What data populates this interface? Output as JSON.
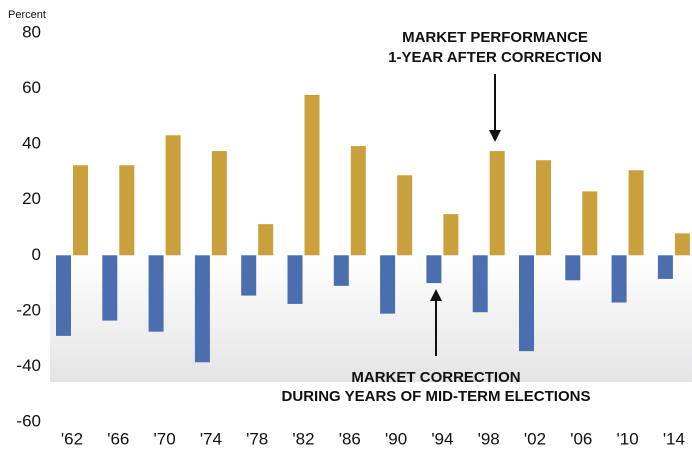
{
  "chart_data": {
    "type": "bar",
    "y_label": "Percent",
    "categories": [
      "'62",
      "'66",
      "'70",
      "'74",
      "'78",
      "'82",
      "'86",
      "'90",
      "'94",
      "'98",
      "'02",
      "'06",
      "'10",
      "'14"
    ],
    "series": [
      {
        "color": "#4a6eae",
        "values": [
          -29,
          -23.5,
          -27.5,
          -38.5,
          -14.5,
          -17.5,
          -11,
          -21,
          -10,
          -20.5,
          -34.5,
          -9,
          -17,
          -8.5
        ]
      },
      {
        "color": "#c9a03b",
        "values": [
          32.4,
          32.4,
          43.2,
          37.5,
          11.2,
          57.7,
          39.3,
          28.8,
          14.8,
          37.5,
          34.2,
          23,
          30.6,
          7.9
        ]
      }
    ],
    "annotations": [
      {
        "lines": [
          "MARKET PERFORMANCE",
          "1-YEAR AFTER CORRECTION"
        ]
      },
      {
        "lines": [
          "MARKET CORRECTION",
          "DURING YEARS OF MID-TERM ELECTIONS"
        ]
      }
    ],
    "ylim": [
      -60,
      80
    ],
    "yticks": [
      -60,
      -40,
      -20,
      0,
      20,
      40,
      60,
      80
    ],
    "grid": false
  }
}
